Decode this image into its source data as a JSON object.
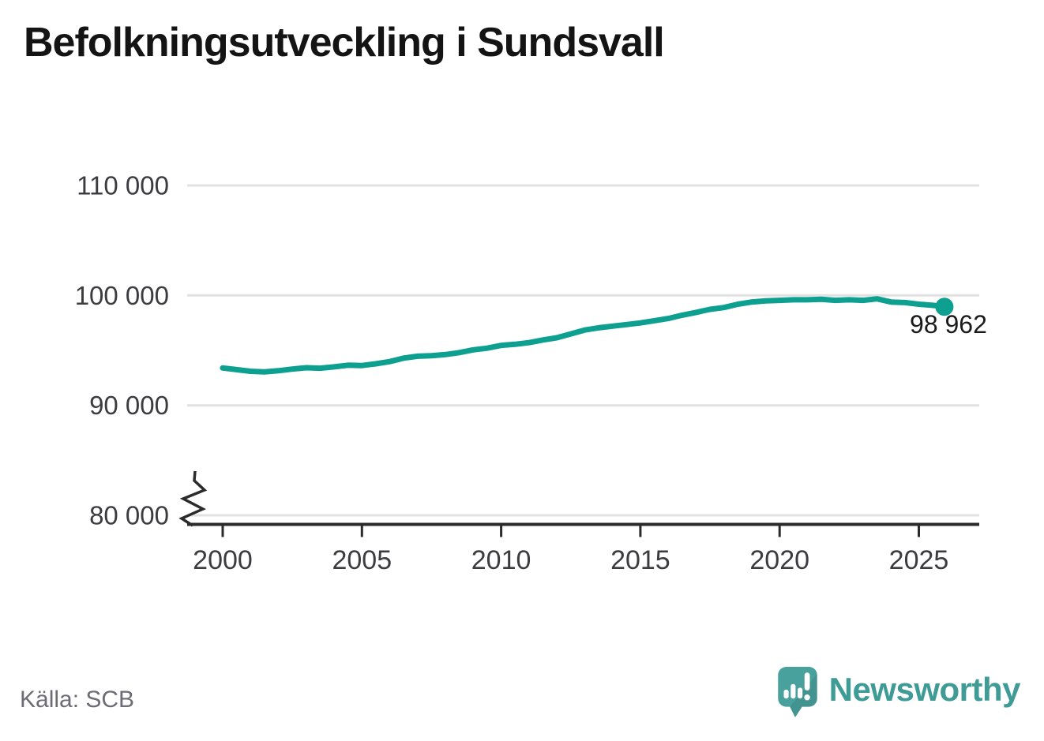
{
  "title": "Befolkningsutveckling i Sundsvall",
  "source": "Källa: SCB",
  "brand": {
    "name": "Newsworthy"
  },
  "colors": {
    "line": "#0d9f8f",
    "grid": "#e1e1e1",
    "axis": "#2b2b2b",
    "tick_label": "#3c3c40",
    "title": "#141414",
    "source": "#6c6c74",
    "annotation": "#1a1a1a",
    "brand_icon": "#49a19d",
    "brand_text": "#3f9b95"
  },
  "chart_data": {
    "type": "line",
    "title": "Befolkningsutveckling i Sundsvall",
    "xlabel": "",
    "ylabel": "",
    "x": [
      2000,
      2000.5,
      2001,
      2001.5,
      2002,
      2002.5,
      2003,
      2003.5,
      2004,
      2004.5,
      2005,
      2005.5,
      2006,
      2006.5,
      2007,
      2007.5,
      2008,
      2008.5,
      2009,
      2009.5,
      2010,
      2010.5,
      2011,
      2011.5,
      2012,
      2012.5,
      2013,
      2013.5,
      2014,
      2014.5,
      2015,
      2015.5,
      2016,
      2016.5,
      2017,
      2017.5,
      2018,
      2018.5,
      2019,
      2019.5,
      2020,
      2020.5,
      2021,
      2021.5,
      2022,
      2022.5,
      2023,
      2023.5,
      2024,
      2024.5,
      2025,
      2025.5,
      2025.92
    ],
    "values": [
      93400,
      93250,
      93100,
      93050,
      93150,
      93300,
      93420,
      93380,
      93500,
      93650,
      93620,
      93780,
      93980,
      94300,
      94470,
      94520,
      94620,
      94800,
      95050,
      95200,
      95450,
      95550,
      95700,
      95950,
      96150,
      96500,
      96850,
      97050,
      97200,
      97350,
      97500,
      97700,
      97900,
      98200,
      98450,
      98730,
      98900,
      99200,
      99400,
      99500,
      99550,
      99600,
      99600,
      99650,
      99550,
      99600,
      99550,
      99690,
      99400,
      99350,
      99200,
      99100,
      98962
    ],
    "x_ticks": [
      2000,
      2005,
      2010,
      2015,
      2020,
      2025
    ],
    "x_tick_labels": [
      "2000",
      "2005",
      "2010",
      "2015",
      "2020",
      "2025"
    ],
    "y_ticks": [
      80000,
      90000,
      100000,
      110000
    ],
    "y_tick_labels": [
      "80 000",
      "90 000",
      "100 000",
      "110 000"
    ],
    "ylim": [
      80000,
      110000
    ],
    "xlim": [
      1998.7,
      2027.2
    ],
    "grid": "horizontal",
    "legend": "none",
    "axis_break_at_y": 80000,
    "last_point_value": 98962,
    "last_point_label": "98 962"
  }
}
